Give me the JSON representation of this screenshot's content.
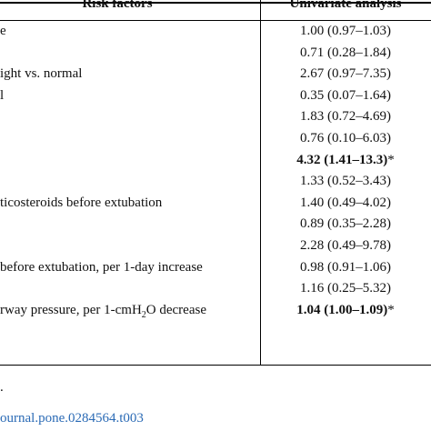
{
  "table": {
    "headers": {
      "risk_factors": "Risk factors",
      "univariate": "Univariate analysis"
    },
    "rows": [
      {
        "factor": "e",
        "value": "1.00 (0.97–1.03)",
        "bold": false,
        "sig": ""
      },
      {
        "factor": "",
        "value": "0.71 (0.28–1.84)",
        "bold": false,
        "sig": ""
      },
      {
        "factor": "ight vs. normal",
        "value": "2.67 (0.97–7.35)",
        "bold": false,
        "sig": ""
      },
      {
        "factor": "l",
        "value": "0.35 (0.07–1.64)",
        "bold": false,
        "sig": ""
      },
      {
        "factor": "",
        "value": "1.83 (0.72–4.69)",
        "bold": false,
        "sig": ""
      },
      {
        "factor": "",
        "value": "0.76 (0.10–6.03)",
        "bold": false,
        "sig": ""
      },
      {
        "factor": "",
        "value": "4.32 (1.41–13.3)",
        "bold": true,
        "sig": "*"
      },
      {
        "factor": "",
        "value": "1.33 (0.52–3.43)",
        "bold": false,
        "sig": ""
      },
      {
        "factor": "ticosteroids before extubation",
        "value": "1.40 (0.49–4.02)",
        "bold": false,
        "sig": ""
      },
      {
        "factor": "",
        "value": "0.89 (0.35–2.28)",
        "bold": false,
        "sig": ""
      },
      {
        "factor": "",
        "value": "2.28 (0.49–9.78)",
        "bold": false,
        "sig": ""
      },
      {
        "factor": " before extubation, per 1-day increase",
        "value": "0.98 (0.91–1.06)",
        "bold": false,
        "sig": ""
      },
      {
        "factor": "",
        "value": "1.16 (0.25–5.32)",
        "bold": false,
        "sig": ""
      },
      {
        "factor": "rway pressure, per 1-cmH",
        "factor_sub": "2",
        "factor_tail": "O decrease",
        "value": "1.04 (1.00–1.09)",
        "bold": true,
        "sig": "*"
      }
    ]
  },
  "footnote": ".",
  "doi": "ournal.pone.0284564.t003"
}
